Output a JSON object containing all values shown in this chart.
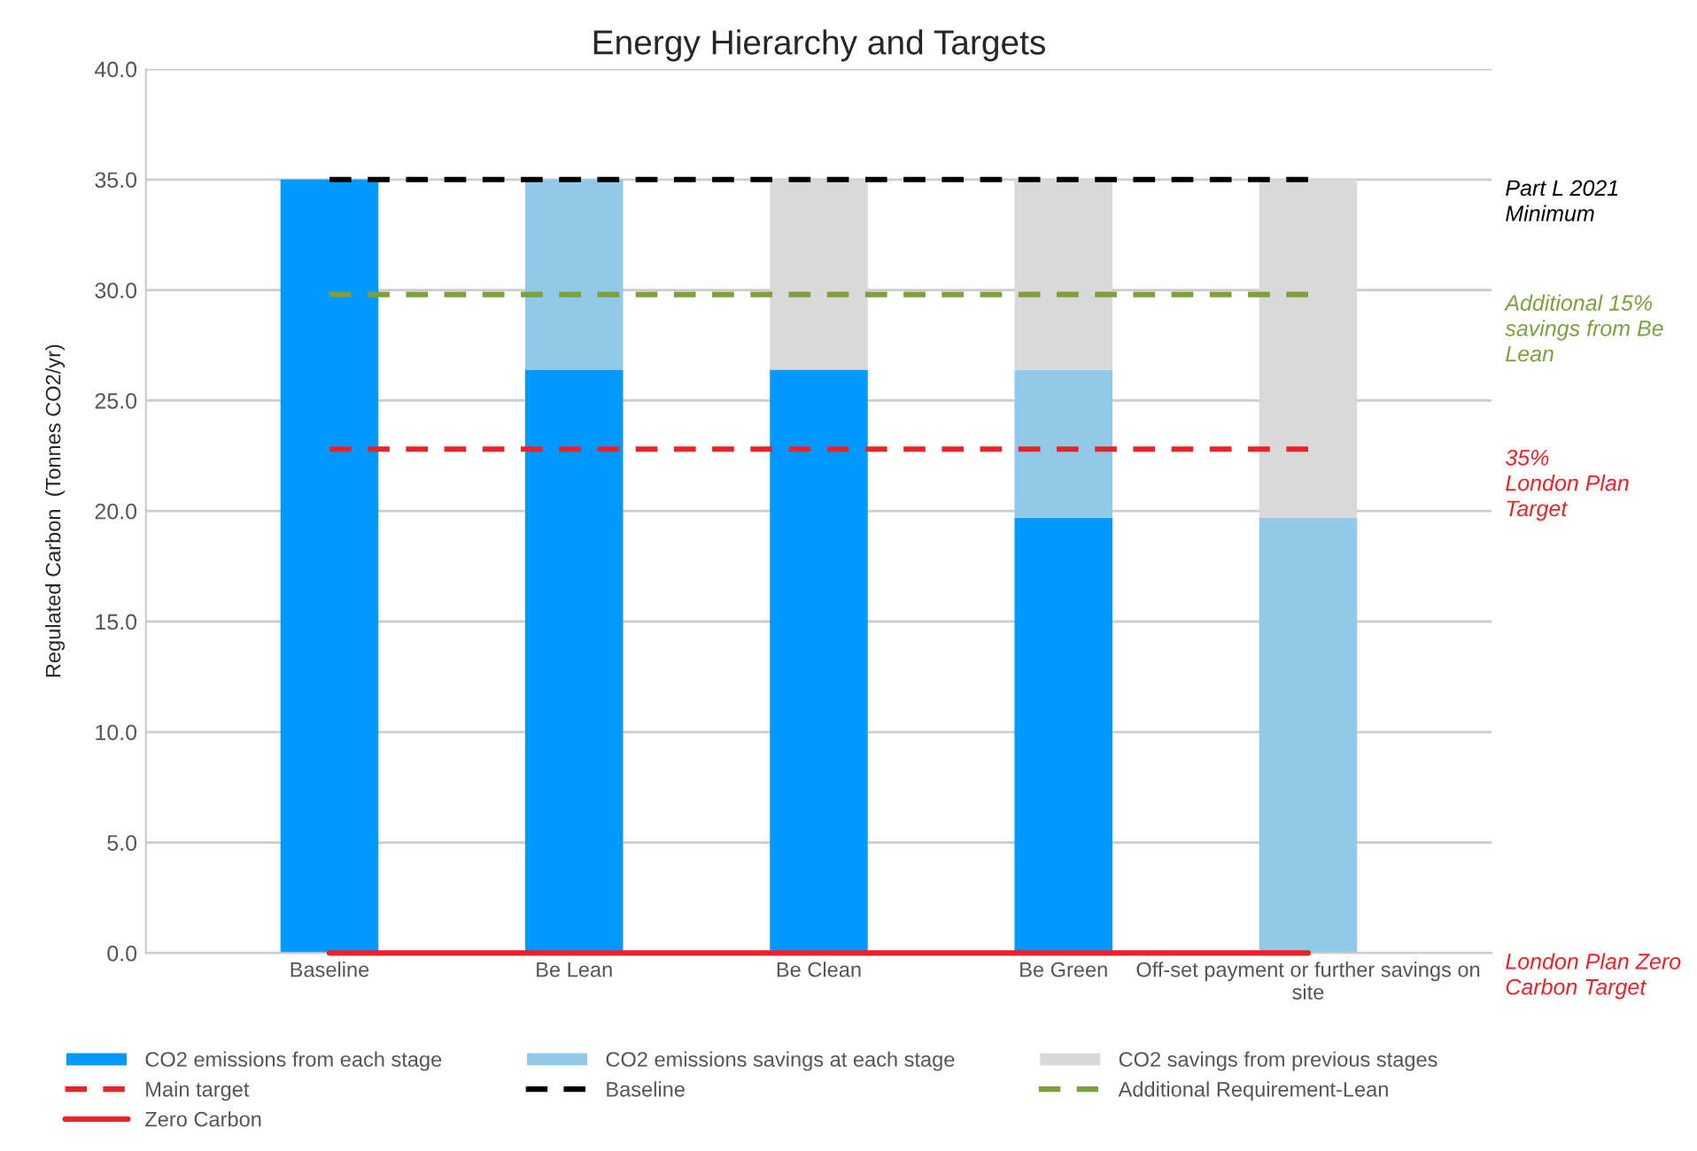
{
  "chart_data": {
    "type": "bar",
    "title": "Energy Hierarchy and Targets",
    "ylabel": "Regulated Carbon  (Tonnes CO2/yr)",
    "categories": [
      "Baseline",
      "Be Lean",
      "Be Clean",
      "Be Green",
      "Off-set payment or further savings on site"
    ],
    "stacked": true,
    "series": [
      {
        "name": "CO2 emissions from each stage",
        "color": "#0099ff",
        "values": [
          35,
          26.4,
          26.4,
          19.7,
          0
        ]
      },
      {
        "name": "CO2 emissions savings at each stage",
        "color": "#93c9e8",
        "values": [
          0,
          8.6,
          0,
          6.7,
          19.7
        ]
      },
      {
        "name": "CO2 savings from previous stages",
        "color": "#d9d9d9",
        "values": [
          0,
          0,
          8.6,
          8.6,
          15.3
        ]
      },
      {
        "name": "Main target",
        "type": "line",
        "line_style": "dashed",
        "color": "#e8242a",
        "values": [
          22.8,
          22.8,
          22.8,
          22.8,
          22.8
        ]
      },
      {
        "name": "Baseline",
        "type": "line",
        "line_style": "dashed",
        "color": "#000000",
        "values": [
          35,
          35,
          35,
          35,
          35
        ]
      },
      {
        "name": "Additional Requirement-Lean",
        "type": "line",
        "line_style": "dashed",
        "color": "#7f9f3f",
        "values": [
          29.8,
          29.8,
          29.8,
          29.8,
          29.8
        ]
      },
      {
        "name": "Zero Carbon",
        "type": "line",
        "line_style": "solid",
        "color": "#e8242a",
        "values": [
          0,
          0,
          0,
          0,
          0
        ]
      }
    ],
    "ylim": [
      0,
      40
    ],
    "yticks": [
      {
        "value": 0,
        "label": "0.0"
      },
      {
        "value": 5,
        "label": "5.0"
      },
      {
        "value": 10,
        "label": "10.0"
      },
      {
        "value": 15,
        "label": "15.0"
      },
      {
        "value": 20,
        "label": "20.0"
      },
      {
        "value": 25,
        "label": "25.0"
      },
      {
        "value": 30,
        "label": "30.0"
      },
      {
        "value": 35,
        "label": "35.0"
      },
      {
        "value": 40,
        "label": "40.0"
      }
    ],
    "grid": "y",
    "legend": "bottom",
    "annotations": [
      "Part L 2021\nMinimum",
      "Additional 15%\nsavings from Be\nLean",
      "35%\nLondon Plan\nTarget",
      "London Plan Zero\nCarbon Target"
    ]
  }
}
